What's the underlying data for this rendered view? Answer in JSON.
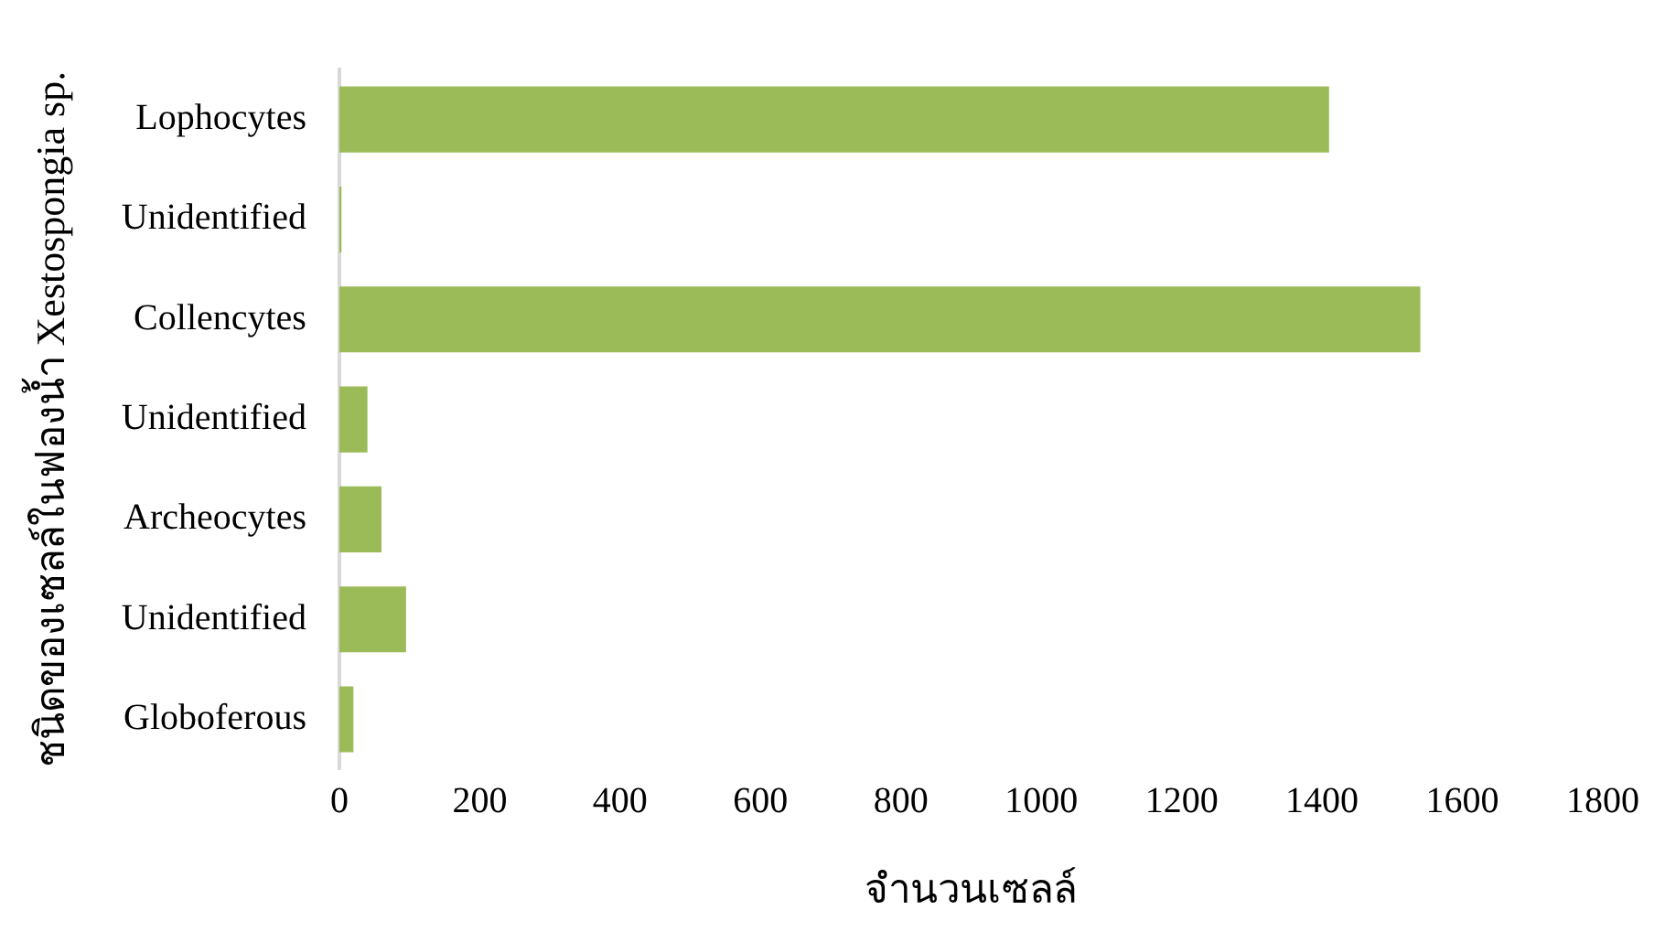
{
  "chart_data": {
    "type": "bar",
    "orientation": "horizontal",
    "xlabel": "จำนวนเซลล์",
    "ylabel": "ชนิดของเซลล์ในฟองน้ำ Xestospongia sp.",
    "categories": [
      "Lophocytes",
      "Unidentified",
      "Collencytes",
      "Unidentified",
      "Archeocytes",
      "Unidentified",
      "Globoferous"
    ],
    "values": [
      1410,
      3,
      1540,
      40,
      60,
      95,
      20
    ],
    "color": "#9bbb59",
    "xlim": [
      0,
      1800
    ],
    "xticks": [
      0,
      200,
      400,
      600,
      800,
      1000,
      1200,
      1400,
      1600,
      1800
    ],
    "grid": false,
    "legend": false
  }
}
